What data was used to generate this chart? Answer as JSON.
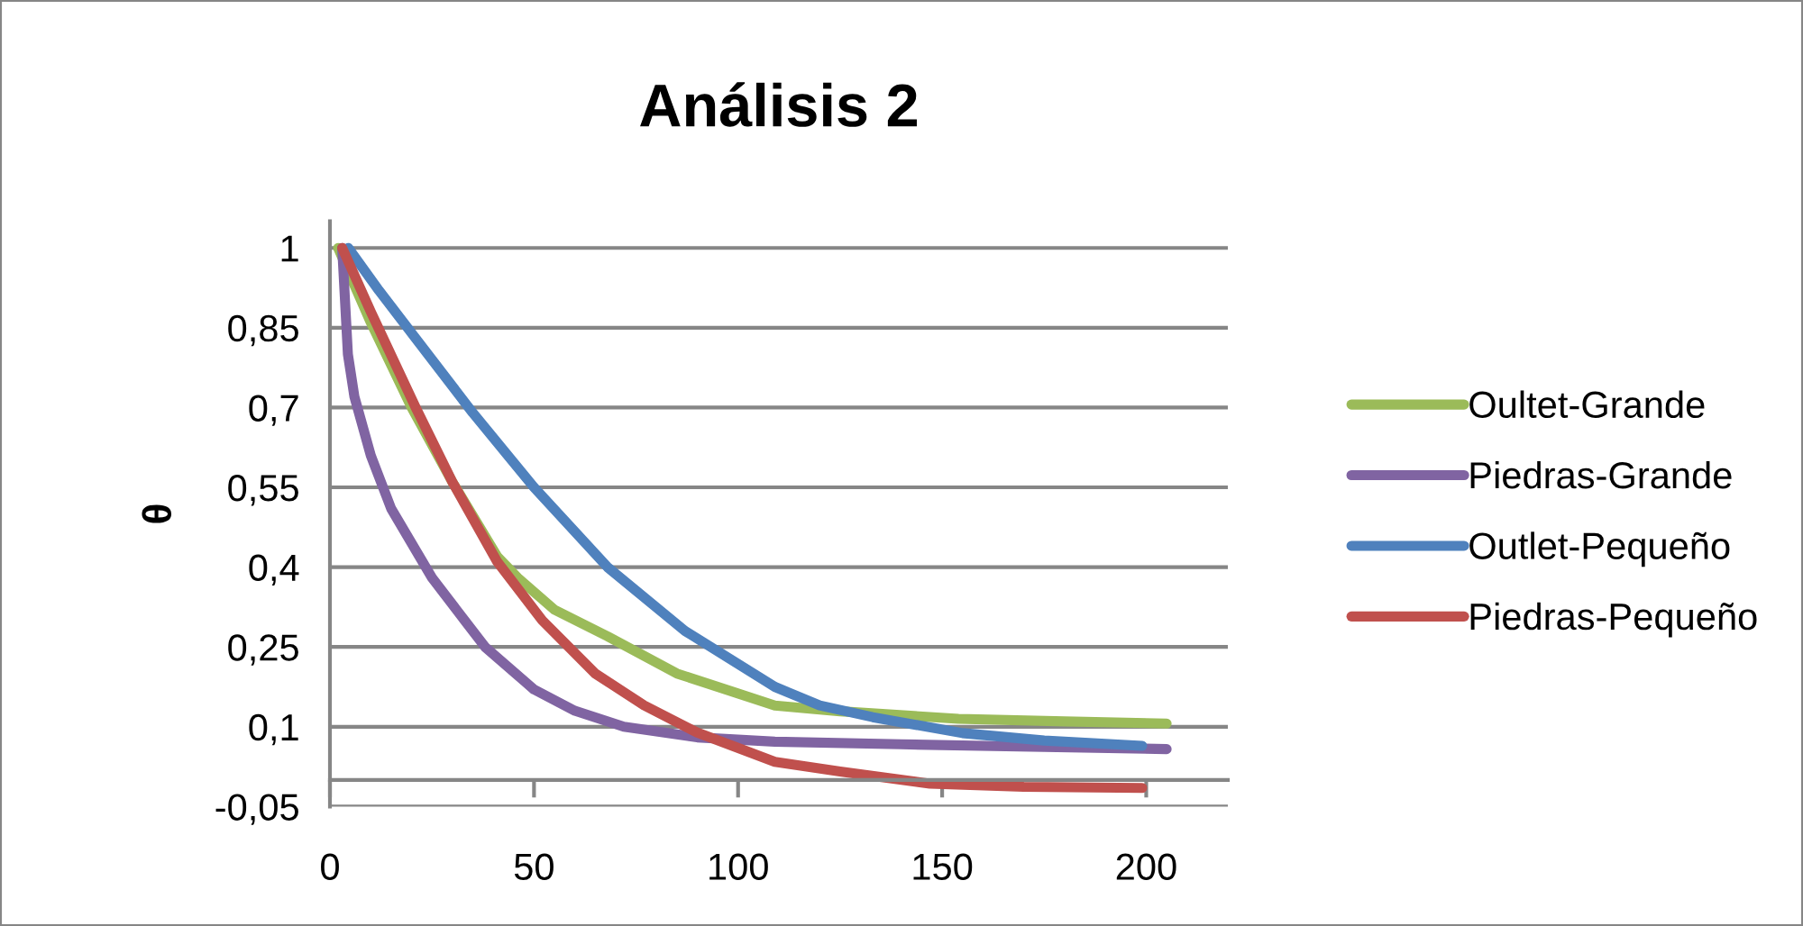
{
  "chart_data": {
    "type": "line",
    "title": "Análisis 2",
    "ylabel": "θ",
    "xlim": [
      0,
      220
    ],
    "xticks": [
      0,
      50,
      100,
      150,
      200
    ],
    "ylim": [
      -0.05,
      1.05
    ],
    "yticks": [
      {
        "value": -0.05,
        "label": "-0,05"
      },
      {
        "value": 0.1,
        "label": "0,1"
      },
      {
        "value": 0.25,
        "label": "0,25"
      },
      {
        "value": 0.4,
        "label": "0,4"
      },
      {
        "value": 0.55,
        "label": "0,55"
      },
      {
        "value": 0.7,
        "label": "0,7"
      },
      {
        "value": 0.85,
        "label": "0,85"
      },
      {
        "value": 1,
        "label": "1"
      }
    ],
    "grid": "y",
    "legend": "right",
    "marker": "none",
    "line_style": "solid",
    "series": [
      {
        "name": "Oultet-Grande",
        "color": "#9bbb59",
        "x": [
          2,
          10,
          20,
          30,
          41,
          46,
          55,
          68,
          85,
          109,
          125,
          154,
          180,
          205
        ],
        "values": [
          1,
          0.86,
          0.7,
          0.56,
          0.42,
          0.38,
          0.32,
          0.27,
          0.2,
          0.14,
          0.129,
          0.115,
          0.11,
          0.106
        ]
      },
      {
        "name": "Piedras-Grande",
        "color": "#8064a2",
        "x": [
          3,
          4.4,
          6,
          10,
          15,
          25,
          38,
          50,
          60,
          72,
          90,
          109,
          140,
          175,
          205
        ],
        "values": [
          1,
          0.8,
          0.72,
          0.61,
          0.51,
          0.38,
          0.25,
          0.17,
          0.13,
          0.1,
          0.08,
          0.072,
          0.067,
          0.062,
          0.058
        ]
      },
      {
        "name": "Outlet-Pequeño",
        "color": "#4f81bd",
        "x": [
          4.5,
          12,
          21,
          35,
          50,
          68,
          87,
          109,
          120,
          133,
          155,
          175,
          199
        ],
        "values": [
          1,
          0.92,
          0.83,
          0.69,
          0.55,
          0.4,
          0.28,
          0.175,
          0.14,
          0.118,
          0.088,
          0.074,
          0.064
        ]
      },
      {
        "name": "Piedras-Pequeño",
        "color": "#c0504d",
        "x": [
          3,
          10,
          21,
          30,
          41,
          52,
          65,
          77,
          90,
          109,
          125,
          147,
          170,
          199
        ],
        "values": [
          1,
          0.88,
          0.7,
          0.56,
          0.41,
          0.3,
          0.2,
          0.14,
          0.089,
          0.034,
          0.016,
          -0.007,
          -0.013,
          -0.015
        ]
      }
    ]
  }
}
